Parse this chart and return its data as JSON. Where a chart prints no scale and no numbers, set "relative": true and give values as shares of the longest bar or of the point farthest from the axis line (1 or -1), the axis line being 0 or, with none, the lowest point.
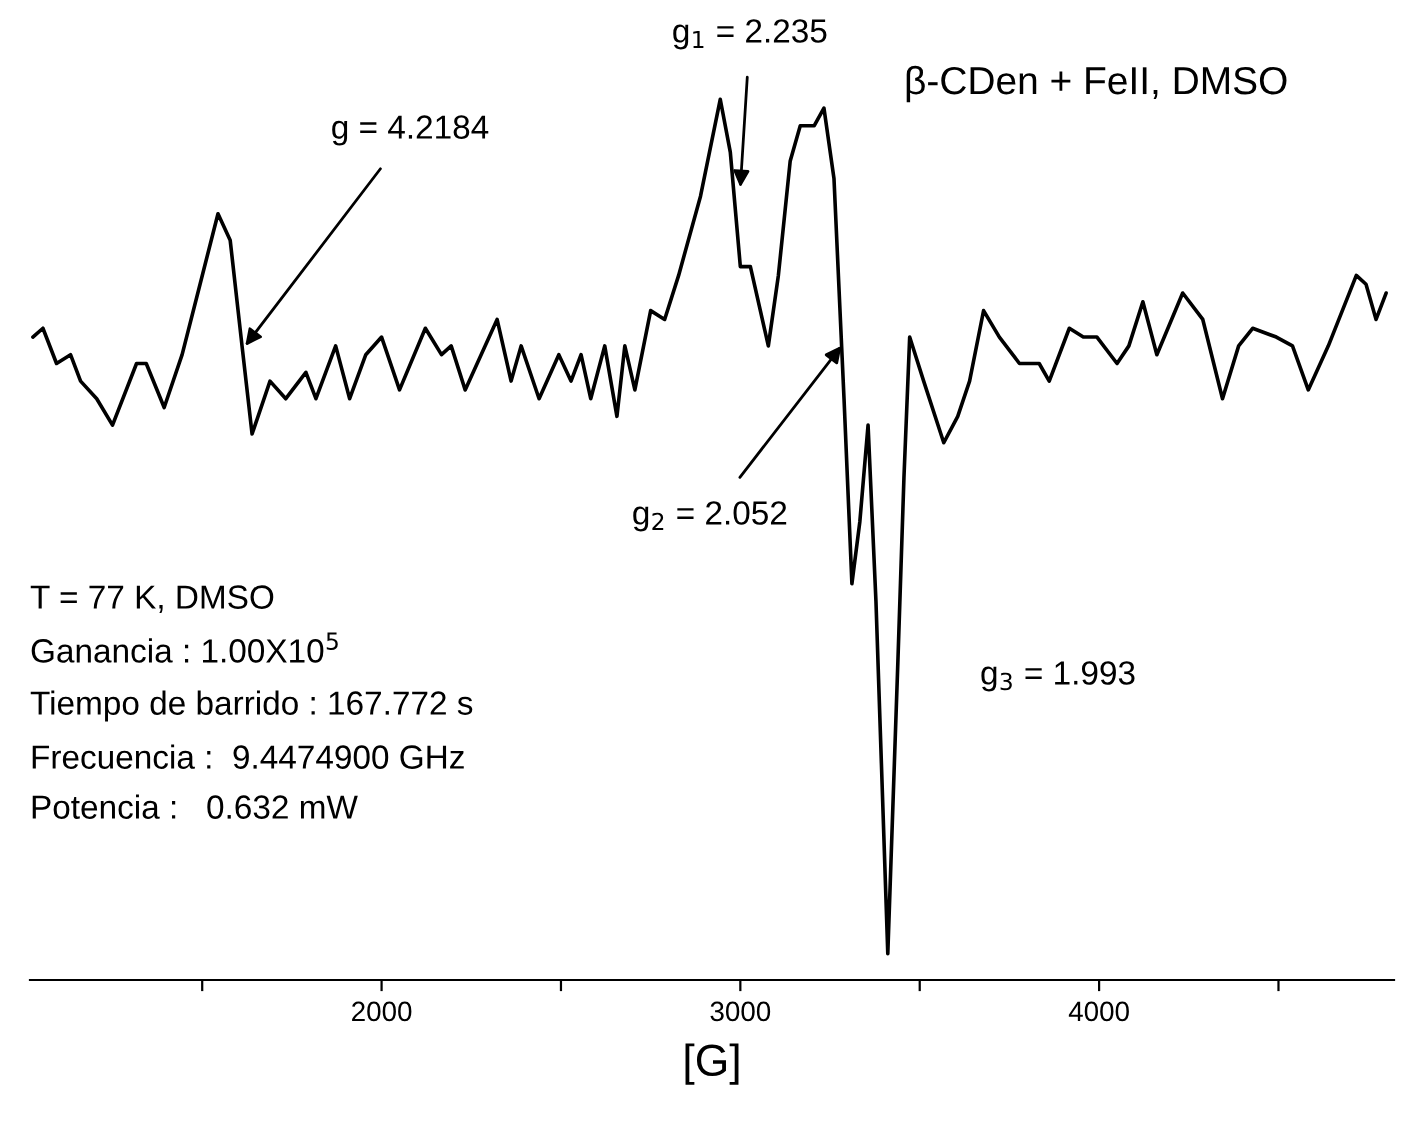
{
  "chart_data": {
    "type": "line",
    "title": "β-CDen + FeII, DMSO",
    "xlabel": "[G]",
    "relative": true,
    "color": "#000000",
    "x": [
      1028,
      1056,
      1094,
      1133,
      1161,
      1206,
      1250,
      1317,
      1344,
      1394,
      1444,
      1494,
      1544,
      1578,
      1611,
      1639,
      1689,
      1733,
      1789,
      1817,
      1872,
      1911,
      1956,
      2000,
      2050,
      2122,
      2167,
      2194,
      2233,
      2322,
      2361,
      2389,
      2439,
      2494,
      2528,
      2556,
      2583,
      2622,
      2656,
      2678,
      2706,
      2750,
      2789,
      2828,
      2889,
      2944,
      2972,
      3000,
      3028,
      3078,
      3106,
      3139,
      3167,
      3206,
      3233,
      3261,
      3289,
      3311,
      3333,
      3356,
      3378,
      3411,
      3439,
      3456,
      3472,
      3511,
      3567,
      3606,
      3639,
      3678,
      3722,
      3778,
      3833,
      3861,
      3917,
      3956,
      3994,
      4050,
      4083,
      4122,
      4161,
      4233,
      4289,
      4344,
      4389,
      4428,
      4494,
      4539,
      4583,
      4639,
      4717,
      4744,
      4772,
      4800
    ],
    "values": [
      0.73,
      0.74,
      0.7,
      0.71,
      0.68,
      0.66,
      0.63,
      0.7,
      0.7,
      0.65,
      0.71,
      0.79,
      0.87,
      0.84,
      0.72,
      0.62,
      0.68,
      0.66,
      0.69,
      0.66,
      0.72,
      0.66,
      0.71,
      0.73,
      0.67,
      0.74,
      0.71,
      0.72,
      0.67,
      0.75,
      0.68,
      0.72,
      0.66,
      0.71,
      0.68,
      0.71,
      0.66,
      0.72,
      0.64,
      0.72,
      0.67,
      0.76,
      0.75,
      0.8,
      0.89,
      1.0,
      0.94,
      0.81,
      0.81,
      0.72,
      0.8,
      0.93,
      0.97,
      0.97,
      0.99,
      0.91,
      0.66,
      0.45,
      0.52,
      0.63,
      0.43,
      0.03,
      0.36,
      0.57,
      0.73,
      0.68,
      0.61,
      0.64,
      0.68,
      0.76,
      0.73,
      0.7,
      0.7,
      0.68,
      0.74,
      0.73,
      0.73,
      0.7,
      0.72,
      0.77,
      0.71,
      0.78,
      0.75,
      0.66,
      0.72,
      0.74,
      0.73,
      0.72,
      0.67,
      0.72,
      0.8,
      0.79,
      0.75,
      0.78
    ],
    "xlim": [
      1020,
      4822
    ],
    "xticks": [
      {
        "value": 1500,
        "label": null
      },
      2000,
      {
        "value": 2500,
        "label": null
      },
      3000,
      {
        "value": 3500,
        "label": null
      },
      4000,
      {
        "value": 4500,
        "label": null
      }
    ],
    "annotations": [
      {
        "text": "g = 4.2184",
        "x": 1620,
        "y": 0.72
      },
      {
        "text": "g$_{1}$ = 2.235",
        "x": 3000,
        "y": 0.9
      },
      {
        "text": "g$_{2}$ = 2.052",
        "x": 3282,
        "y": 0.72
      },
      "g$_{3}$ = 1.993",
      "T = 77 K, DMSO",
      "Ganancia : 1.00X10$^{5}$",
      "Tiempo de barrido : 167.772 s",
      "Frecuencia :  9.4474900 GHz",
      "Potencia :   0.632 mW"
    ]
  }
}
